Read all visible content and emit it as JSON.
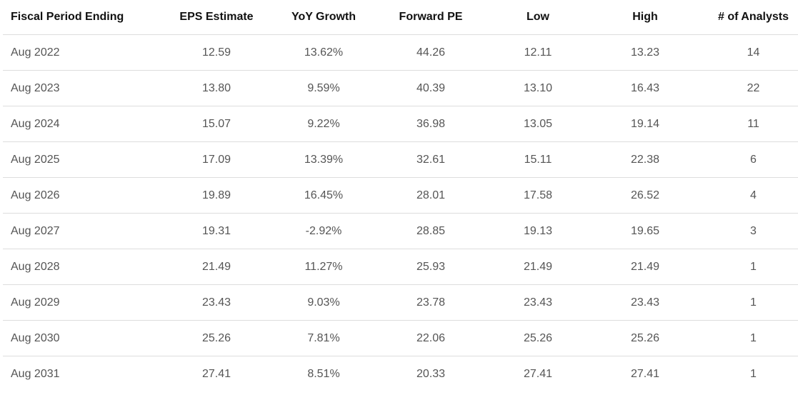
{
  "table": {
    "columns": [
      "Fiscal Period Ending",
      "EPS Estimate",
      "YoY Growth",
      "Forward PE",
      "Low",
      "High",
      "# of Analysts"
    ],
    "rows": [
      [
        "Aug 2022",
        "12.59",
        "13.62%",
        "44.26",
        "12.11",
        "13.23",
        "14"
      ],
      [
        "Aug 2023",
        "13.80",
        "9.59%",
        "40.39",
        "13.10",
        "16.43",
        "22"
      ],
      [
        "Aug 2024",
        "15.07",
        "9.22%",
        "36.98",
        "13.05",
        "19.14",
        "11"
      ],
      [
        "Aug 2025",
        "17.09",
        "13.39%",
        "32.61",
        "15.11",
        "22.38",
        "6"
      ],
      [
        "Aug 2026",
        "19.89",
        "16.45%",
        "28.01",
        "17.58",
        "26.52",
        "4"
      ],
      [
        "Aug 2027",
        "19.31",
        "-2.92%",
        "28.85",
        "19.13",
        "19.65",
        "3"
      ],
      [
        "Aug 2028",
        "21.49",
        "11.27%",
        "25.93",
        "21.49",
        "21.49",
        "1"
      ],
      [
        "Aug 2029",
        "23.43",
        "9.03%",
        "23.78",
        "23.43",
        "23.43",
        "1"
      ],
      [
        "Aug 2030",
        "25.26",
        "7.81%",
        "22.06",
        "25.26",
        "25.26",
        "1"
      ],
      [
        "Aug 2031",
        "27.41",
        "8.51%",
        "20.33",
        "27.41",
        "27.41",
        "1"
      ]
    ]
  }
}
